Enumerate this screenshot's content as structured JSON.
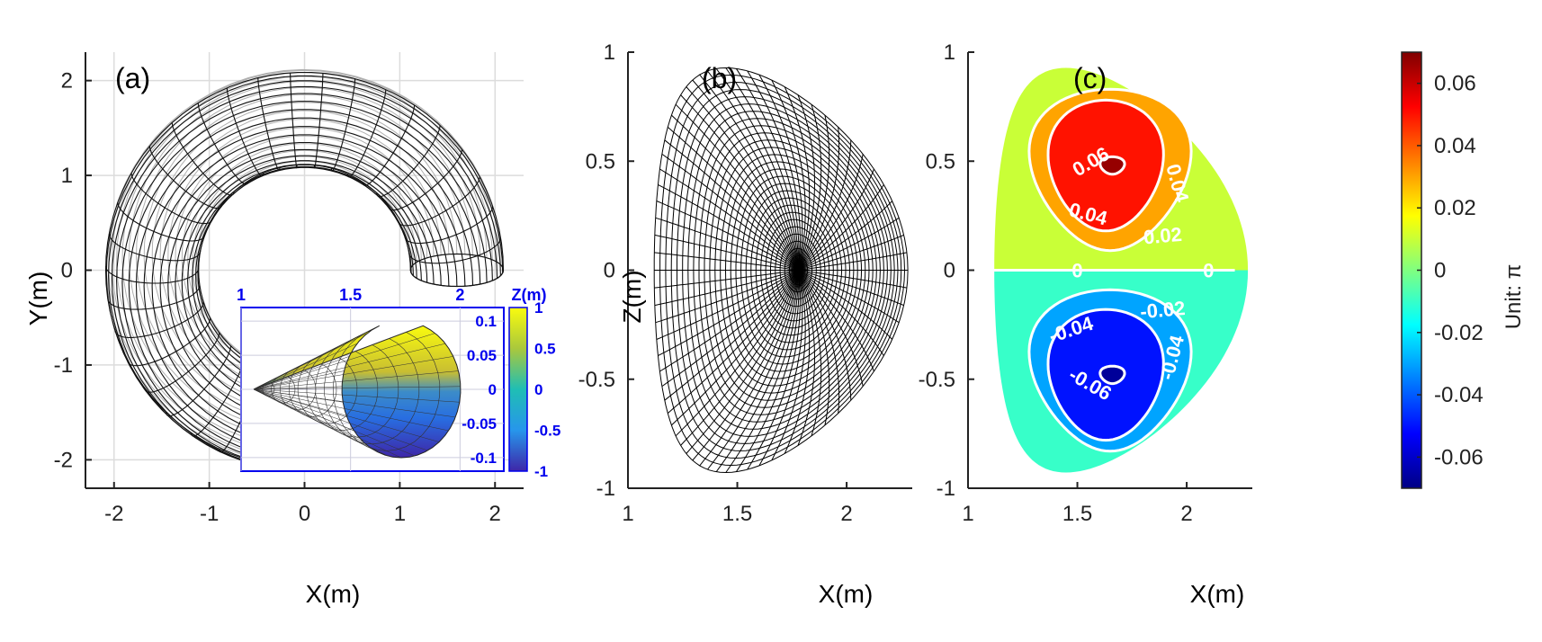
{
  "chart_data": [
    {
      "type": "wireframe-3d",
      "panel_label": "(a)",
      "xlabel": "X(m)",
      "ylabel": "Y(m)",
      "xlim": [
        -2.3,
        2.3
      ],
      "ylim": [
        -2.3,
        2.3
      ],
      "xticks": [
        -2,
        -1,
        0,
        1,
        2
      ],
      "xtick_labels": [
        "-2",
        "-1",
        "0",
        "1",
        "2"
      ],
      "yticks": [
        -2,
        -1,
        0,
        1,
        2
      ],
      "ytick_labels": [
        "-2",
        "-1",
        "0",
        "1",
        "2"
      ],
      "grid": true,
      "torus": {
        "major_radius": 1.6,
        "inner_radius": 1.0,
        "outer_radius": 2.25,
        "phi_start_deg": 0,
        "phi_end_deg": 320
      },
      "inset": {
        "type": "surface",
        "top_xticks": [
          1,
          1.5,
          2
        ],
        "top_xtick_labels": [
          "1",
          "1.5",
          "2"
        ],
        "top_xlim": [
          1,
          2.2
        ],
        "yticks": [
          0.1,
          0.05,
          0,
          -0.05,
          -0.1
        ],
        "ytick_labels": [
          "0.1",
          "0.05",
          "0",
          "-0.05",
          "-0.1"
        ],
        "ylim": [
          -0.12,
          0.12
        ],
        "colorbar": {
          "title": "Z(m)",
          "ticks": [
            1,
            0.5,
            0,
            -0.5,
            -1
          ],
          "tick_labels": [
            "1",
            "0.5",
            "0",
            "-0.5",
            "-1"
          ],
          "range": [
            -1,
            1
          ],
          "colormap": "parula"
        },
        "accent_color": "#0000ee"
      }
    },
    {
      "type": "coordinate-grid",
      "panel_label": "(b)",
      "xlabel": "X(m)",
      "ylabel": "Z(m)",
      "xlim": [
        1,
        2.3
      ],
      "ylim": [
        -1,
        1
      ],
      "xticks": [
        1,
        1.5,
        2
      ],
      "xtick_labels": [
        "1",
        "1.5",
        "2"
      ],
      "yticks": [
        1,
        0.5,
        0,
        -0.5,
        -1
      ],
      "ytick_labels": [
        "1",
        "0.5",
        "0",
        "-0.5",
        "-1"
      ],
      "magnetic_axis": [
        1.78,
        0
      ],
      "boundary": {
        "R0": 1.7,
        "a": 0.58,
        "kappa": 1.6,
        "delta": 0.45,
        "axis_shift": 0.08
      },
      "n_flux_surfaces": 28,
      "n_poloidal_lines": 72
    },
    {
      "type": "contour",
      "panel_label": "(c)",
      "xlabel": "X(m)",
      "ylabel": "",
      "xlim": [
        1,
        2.3
      ],
      "ylim": [
        -1,
        1
      ],
      "xticks": [
        1,
        1.5,
        2
      ],
      "xtick_labels": [
        "1",
        "1.5",
        "2"
      ],
      "yticks": [
        1,
        0.5,
        0,
        -0.5,
        -1
      ],
      "ytick_labels": [
        "1",
        "0.5",
        "0",
        "-0.5",
        "-1"
      ],
      "extrema": [
        {
          "x": 1.65,
          "z": 0.46,
          "value": 0.07
        },
        {
          "x": 1.65,
          "z": -0.46,
          "value": -0.07
        }
      ],
      "levels": [
        -0.06,
        -0.04,
        -0.02,
        0,
        0.02,
        0.04,
        0.06
      ],
      "contour_labels": [
        {
          "text": "0.06",
          "x": 1.56,
          "z": 0.5,
          "rot": -30
        },
        {
          "text": "0.04",
          "x": 1.55,
          "z": 0.26,
          "rot": 15
        },
        {
          "text": "0.04",
          "x": 1.96,
          "z": 0.4,
          "rot": 75
        },
        {
          "text": "0.02",
          "x": 1.89,
          "z": 0.16,
          "rot": -5
        },
        {
          "text": "0",
          "x": 1.5,
          "z": 0,
          "rot": 0
        },
        {
          "text": "0",
          "x": 2.1,
          "z": 0,
          "rot": 0
        },
        {
          "text": "-0.02",
          "x": 1.89,
          "z": -0.18,
          "rot": -5
        },
        {
          "text": "-0.04",
          "x": 1.47,
          "z": -0.27,
          "rot": -18
        },
        {
          "text": "-0.04",
          "x": 1.93,
          "z": -0.4,
          "rot": -75
        },
        {
          "text": "-0.06",
          "x": 1.56,
          "z": -0.52,
          "rot": 30
        }
      ],
      "colorbar": {
        "title": "Unit: π",
        "ticks": [
          0.06,
          0.04,
          0.02,
          0,
          -0.02,
          -0.04,
          -0.06
        ],
        "tick_labels": [
          "0.06",
          "0.04",
          "0.02",
          "0",
          "-0.02",
          "-0.04",
          "-0.06"
        ],
        "range": [
          -0.07,
          0.07
        ],
        "colormap": "jet"
      }
    }
  ]
}
